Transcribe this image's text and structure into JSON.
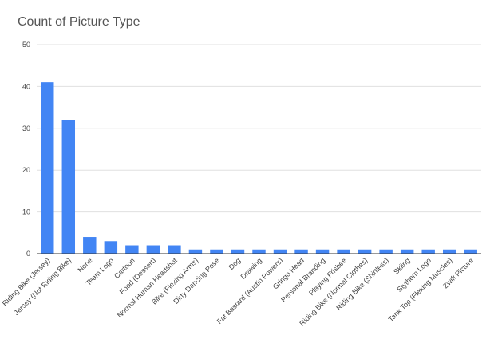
{
  "chart_data": {
    "type": "bar",
    "title": "Count of Picture Type",
    "xlabel": "",
    "ylabel": "",
    "ylim": [
      0,
      50
    ],
    "yticks": [
      0,
      10,
      20,
      30,
      40,
      50
    ],
    "grid": true,
    "legend": "none",
    "categories": [
      "Riding Bike (Jersey)",
      "Jersey (Not Riding Bike)",
      "None",
      "Team Logo",
      "Cartoon",
      "Food (Dessert)",
      "Normal Human Headshot",
      "Bike (Flexing Arms)",
      "Dirty Dancing Pose",
      "Dog",
      "Drawing",
      "Fat Bastard (Austin Powers)",
      "Gringo Head",
      "Personal Branding",
      "Playing Frisbee",
      "Riding Bike (Normal Clothes)",
      "Riding Bike (Shirtless)",
      "Skiing",
      "Stythern Logo",
      "Tank Top (Flexing Muscles)",
      "Zwift Picture"
    ],
    "values": [
      41,
      32,
      4,
      3,
      2,
      2,
      2,
      1,
      1,
      1,
      1,
      1,
      1,
      1,
      1,
      1,
      1,
      1,
      1,
      1,
      1
    ],
    "colors": {
      "bar": "#4285f4",
      "grid": "#e0e0e0",
      "axis": "#333333",
      "text": "#444444"
    }
  }
}
